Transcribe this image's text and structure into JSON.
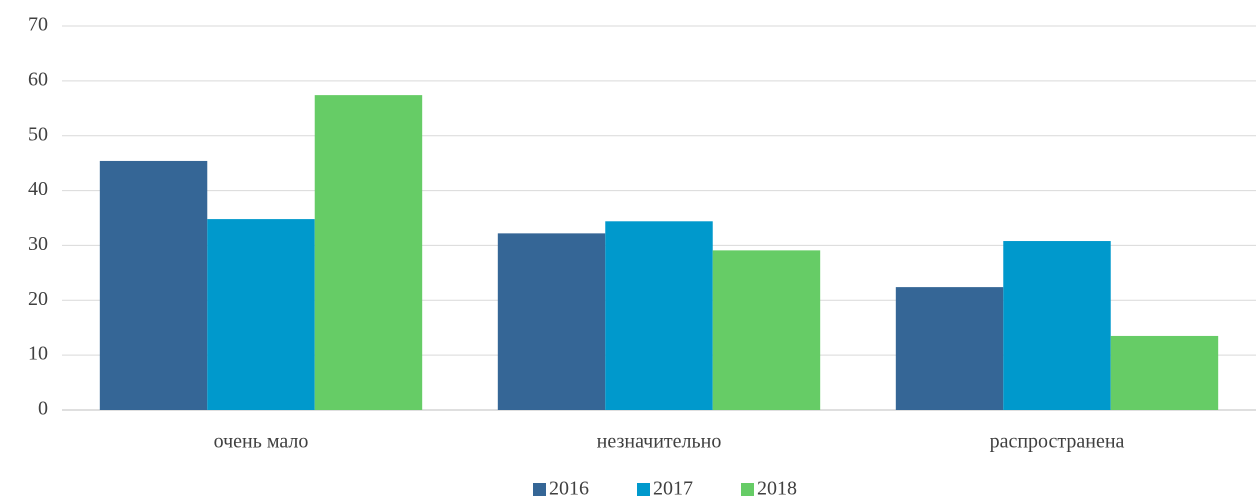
{
  "chart_data": {
    "type": "bar",
    "categories": [
      "очень мало",
      "незначительно",
      "распространена"
    ],
    "series": [
      {
        "name": "2016",
        "color": "#356696",
        "values": [
          45.4,
          32.2,
          22.4
        ]
      },
      {
        "name": "2017",
        "color": "#0099cc",
        "values": [
          34.8,
          34.4,
          30.8
        ]
      },
      {
        "name": "2018",
        "color": "#66cc66",
        "values": [
          57.4,
          29.1,
          13.5
        ]
      }
    ],
    "ylim": [
      0,
      70
    ],
    "yticks": [
      0,
      10,
      20,
      30,
      40,
      50,
      60,
      70
    ],
    "grid": true,
    "legend": "bottom"
  }
}
